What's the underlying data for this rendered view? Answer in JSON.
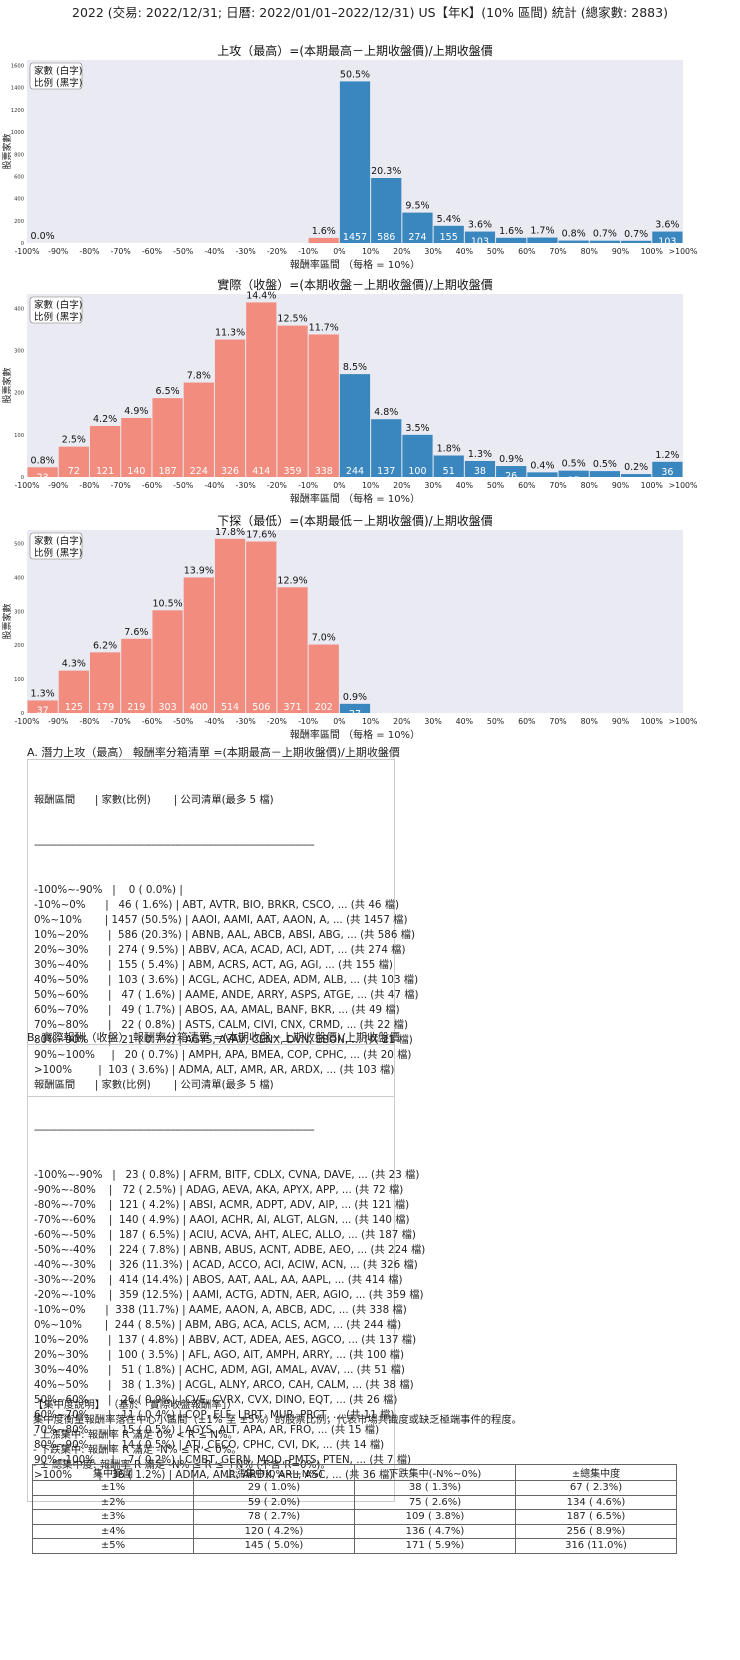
{
  "page_title": "2022 (交易: 2022/12/31; 日曆: 2022/01/01–2022/12/31) US【年K】(10% 區間) 統計 (總家數: 2883)",
  "colors": {
    "up": "#3a87c0",
    "down": "#f28c7f",
    "panel": "#eaeaf2"
  },
  "legend": {
    "line1": "家數 (白字)",
    "line2": "比例 (黑字)"
  },
  "chart_data": [
    {
      "type": "bar",
      "title": "上攻（最高）=(本期最高－上期收盤價)/上期收盤價",
      "xlabel": "報酬率區間 （每格 = 10%）",
      "ylabel": "股票家數",
      "xticks": [
        "-100%",
        "-90%",
        "-80%",
        "-70%",
        "-60%",
        "-50%",
        "-40%",
        "-30%",
        "-20%",
        "-10%",
        "0%",
        "10%",
        "20%",
        "30%",
        "40%",
        "50%",
        "60%",
        "70%",
        "80%",
        "90%",
        "100%",
        ">100%"
      ],
      "yticks": [
        0,
        200,
        400,
        600,
        800,
        1000,
        1200,
        1400,
        1600
      ],
      "ylim": [
        0,
        1650
      ],
      "bars": [
        {
          "bin": "-100%~-90%",
          "count": 0,
          "pct": "0.0%",
          "color": "down"
        },
        {
          "bin": "-10%~0%",
          "count": 46,
          "pct": "1.6%",
          "color": "down"
        },
        {
          "bin": "0%~10%",
          "count": 1457,
          "pct": "50.5%",
          "color": "up"
        },
        {
          "bin": "10%~20%",
          "count": 586,
          "pct": "20.3%",
          "color": "up"
        },
        {
          "bin": "20%~30%",
          "count": 274,
          "pct": "9.5%",
          "color": "up"
        },
        {
          "bin": "30%~40%",
          "count": 155,
          "pct": "5.4%",
          "color": "up"
        },
        {
          "bin": "40%~50%",
          "count": 103,
          "pct": "3.6%",
          "color": "up"
        },
        {
          "bin": "50%~60%",
          "count": 47,
          "pct": "1.6%",
          "color": "up"
        },
        {
          "bin": "60%~70%",
          "count": 49,
          "pct": "1.7%",
          "color": "up"
        },
        {
          "bin": "70%~80%",
          "count": 22,
          "pct": "0.8%",
          "color": "up"
        },
        {
          "bin": "80%~90%",
          "count": 21,
          "pct": "0.7%",
          "color": "up"
        },
        {
          "bin": "90%~100%",
          "count": 20,
          "pct": "0.7%",
          "color": "up"
        },
        {
          "bin": ">100%",
          "count": 103,
          "pct": "3.6%",
          "color": "up"
        }
      ]
    },
    {
      "type": "bar",
      "title": "實際（收盤）=(本期收盤－上期收盤價)/上期收盤價",
      "xlabel": "報酬率區間 （每格 = 10%）",
      "ylabel": "股票家數",
      "xticks": [
        "-100%",
        "-90%",
        "-80%",
        "-70%",
        "-60%",
        "-50%",
        "-40%",
        "-30%",
        "-20%",
        "-10%",
        "0%",
        "10%",
        "20%",
        "30%",
        "40%",
        "50%",
        "60%",
        "70%",
        "80%",
        "90%",
        "100%",
        ">100%"
      ],
      "yticks": [
        0,
        100,
        200,
        300,
        400
      ],
      "ylim": [
        0,
        434
      ],
      "bars": [
        {
          "bin": "-100%~-90%",
          "count": 23,
          "pct": "0.8%",
          "color": "down"
        },
        {
          "bin": "-90%~-80%",
          "count": 72,
          "pct": "2.5%",
          "color": "down"
        },
        {
          "bin": "-80%~-70%",
          "count": 121,
          "pct": "4.2%",
          "color": "down"
        },
        {
          "bin": "-70%~-60%",
          "count": 140,
          "pct": "4.9%",
          "color": "down"
        },
        {
          "bin": "-60%~-50%",
          "count": 187,
          "pct": "6.5%",
          "color": "down"
        },
        {
          "bin": "-50%~-40%",
          "count": 224,
          "pct": "7.8%",
          "color": "down"
        },
        {
          "bin": "-40%~-30%",
          "count": 326,
          "pct": "11.3%",
          "color": "down"
        },
        {
          "bin": "-30%~-20%",
          "count": 414,
          "pct": "14.4%",
          "color": "down"
        },
        {
          "bin": "-20%~-10%",
          "count": 359,
          "pct": "12.5%",
          "color": "down"
        },
        {
          "bin": "-10%~0%",
          "count": 338,
          "pct": "11.7%",
          "color": "down"
        },
        {
          "bin": "0%~10%",
          "count": 244,
          "pct": "8.5%",
          "color": "up"
        },
        {
          "bin": "10%~20%",
          "count": 137,
          "pct": "4.8%",
          "color": "up"
        },
        {
          "bin": "20%~30%",
          "count": 100,
          "pct": "3.5%",
          "color": "up"
        },
        {
          "bin": "30%~40%",
          "count": 51,
          "pct": "1.8%",
          "color": "up"
        },
        {
          "bin": "40%~50%",
          "count": 38,
          "pct": "1.3%",
          "color": "up"
        },
        {
          "bin": "50%~60%",
          "count": 26,
          "pct": "0.9%",
          "color": "up"
        },
        {
          "bin": "60%~70%",
          "count": 11,
          "pct": "0.4%",
          "color": "up"
        },
        {
          "bin": "70%~80%",
          "count": 15,
          "pct": "0.5%",
          "color": "up"
        },
        {
          "bin": "80%~90%",
          "count": 14,
          "pct": "0.5%",
          "color": "up"
        },
        {
          "bin": "90%~100%",
          "count": 7,
          "pct": "0.2%",
          "color": "up"
        },
        {
          "bin": ">100%",
          "count": 36,
          "pct": "1.2%",
          "color": "up"
        }
      ]
    },
    {
      "type": "bar",
      "title": "下探（最低）=(本期最低－上期收盤價)/上期收盤價",
      "xlabel": "報酬率區間 （每格 = 10%）",
      "ylabel": "股票家數",
      "xticks": [
        "-100%",
        "-90%",
        "-80%",
        "-70%",
        "-60%",
        "-50%",
        "-40%",
        "-30%",
        "-20%",
        "-10%",
        "0%",
        "10%",
        "20%",
        "30%",
        "40%",
        "50%",
        "60%",
        "70%",
        "80%",
        "90%",
        "100%",
        ">100%"
      ],
      "yticks": [
        0,
        100,
        200,
        300,
        400,
        500
      ],
      "ylim": [
        0,
        540
      ],
      "bars": [
        {
          "bin": "-100%~-90%",
          "count": 37,
          "pct": "1.3%",
          "color": "down"
        },
        {
          "bin": "-90%~-80%",
          "count": 125,
          "pct": "4.3%",
          "color": "down"
        },
        {
          "bin": "-80%~-70%",
          "count": 179,
          "pct": "6.2%",
          "color": "down"
        },
        {
          "bin": "-70%~-60%",
          "count": 219,
          "pct": "7.6%",
          "color": "down"
        },
        {
          "bin": "-60%~-50%",
          "count": 303,
          "pct": "10.5%",
          "color": "down"
        },
        {
          "bin": "-50%~-40%",
          "count": 400,
          "pct": "13.9%",
          "color": "down"
        },
        {
          "bin": "-40%~-30%",
          "count": 514,
          "pct": "17.8%",
          "color": "down"
        },
        {
          "bin": "-30%~-20%",
          "count": 506,
          "pct": "17.6%",
          "color": "down"
        },
        {
          "bin": "-20%~-10%",
          "count": 371,
          "pct": "12.9%",
          "color": "down"
        },
        {
          "bin": "-10%~0%",
          "count": 202,
          "pct": "7.0%",
          "color": "down"
        },
        {
          "bin": "0%~10%",
          "count": 27,
          "pct": "0.9%",
          "color": "up"
        }
      ]
    }
  ],
  "section_a": {
    "title": "A. 潛力上攻（最高） 報酬率分箱清單 =(本期最高－上期收盤價)/上期收盤價",
    "header": "報酬區間      | 家數(比例)       | 公司清單(最多 5 檔)",
    "separator": "-------------------------------------------------------------------------------------------------------",
    "rows": [
      "-100%~-90%   |    0 ( 0.0%) |",
      "-10%~0%      |   46 ( 1.6%) | ABT, AVTR, BIO, BRKR, CSCO, ... (共 46 檔)",
      "0%~10%       | 1457 (50.5%) | AAOI, AAMI, AAT, AAON, A, ... (共 1457 檔)",
      "10%~20%      |  586 (20.3%) | ABNB, AAL, ABCB, ABSI, ABG, ... (共 586 檔)",
      "20%~30%      |  274 ( 9.5%) | ABBV, ACA, ACAD, ACI, ADT, ... (共 274 檔)",
      "30%~40%      |  155 ( 5.4%) | ABM, ACRS, ACT, AG, AGI, ... (共 155 檔)",
      "40%~50%      |  103 ( 3.6%) | ACGL, ACHC, ADEA, ADM, ALB, ... (共 103 檔)",
      "50%~60%      |   47 ( 1.6%) | AAME, ANDE, ARRY, ASPS, ATGE, ... (共 47 檔)",
      "60%~70%      |   49 ( 1.7%) | ABOS, AA, AMAL, BANF, BKR, ... (共 49 檔)",
      "70%~80%      |   22 ( 0.8%) | ASTS, CALM, CIVI, CNX, CRMD, ... (共 22 檔)",
      "80%~90%      |   21 ( 0.7%) | AGYS, AVAV, CENX, DVN, EBON, ... (共 21 檔)",
      "90%~100%     |   20 ( 0.7%) | AMPH, APA, BMEA, COP, CPHC, ... (共 20 檔)",
      ">100%        |  103 ( 3.6%) | ADMA, ALT, AMR, AR, ARDX, ... (共 103 檔)"
    ]
  },
  "section_b": {
    "title": "B. 實際報酬（收盤） 報酬率分箱清單 =(本期收盤－上期收盤價)/上期收盤價",
    "header": "報酬區間      | 家數(比例)       | 公司清單(最多 5 檔)",
    "separator": "-------------------------------------------------------------------------------------------------------",
    "rows": [
      "-100%~-90%   |   23 ( 0.8%) | AFRM, BITF, CDLX, CVNA, DAVE, ... (共 23 檔)",
      "-90%~-80%    |   72 ( 2.5%) | ADAG, AEVA, AKA, APYX, APP, ... (共 72 檔)",
      "-80%~-70%    |  121 ( 4.2%) | ABSI, ACMR, ADPT, ADV, AIP, ... (共 121 檔)",
      "-70%~-60%    |  140 ( 4.9%) | AAOI, ACHR, AI, ALGT, ALGN, ... (共 140 檔)",
      "-60%~-50%    |  187 ( 6.5%) | ACIU, ACVA, AHT, ALEC, ALLO, ... (共 187 檔)",
      "-50%~-40%    |  224 ( 7.8%) | ABNB, ABUS, ACNT, ADBE, AEO, ... (共 224 檔)",
      "-40%~-30%    |  326 (11.3%) | ACAD, ACCO, ACI, ACIW, ACN, ... (共 326 檔)",
      "-30%~-20%    |  414 (14.4%) | ABOS, AAT, AAL, AA, AAPL, ... (共 414 檔)",
      "-20%~-10%    |  359 (12.5%) | AAMI, ACTG, ADTN, AER, AGIO, ... (共 359 檔)",
      "-10%~0%      |  338 (11.7%) | AAME, AAON, A, ABCB, ADC, ... (共 338 檔)",
      "0%~10%       |  244 ( 8.5%) | ABM, ABG, ACA, ACLS, ACM, ... (共 244 檔)",
      "10%~20%      |  137 ( 4.8%) | ABBV, ACT, ADEA, AES, AGCO, ... (共 137 檔)",
      "20%~30%      |  100 ( 3.5%) | AFL, AGO, AIT, AMPH, ARRY, ... (共 100 檔)",
      "30%~40%      |   51 ( 1.8%) | ACHC, ADM, AGI, AMAL, AVAV, ... (共 51 檔)",
      "40%~50%      |   38 ( 1.3%) | ACGL, ALNY, ARCO, CAH, CALM, ... (共 38 檔)",
      "50%~60%      |   26 ( 0.9%) | CVE, CVRX, CVX, DINO, EQT, ... (共 26 檔)",
      "60%~70%      |   11 ( 0.4%) | COP, ELF, LBRT, MUR, PRCT, ... (共 11 檔)",
      "70%~80%      |   15 ( 0.5%) | AGYS, ALT, APA, AR, FRO, ... (共 15 檔)",
      "80%~90%      |   14 ( 0.5%) | ATI, CECO, CPHC, CVI, DK, ... (共 14 檔)",
      "90%~100%     |    7 ( 0.2%) | CMBT, GERN, MOD, PMTS, PTEN, ... (共 7 檔)",
      ">100%        |   36 ( 1.2%) | ADMA, AMR, ARDX, ARL, ASC, ... (共 36 檔)"
    ]
  },
  "concentration": {
    "heading": "【集中度說明】 （基於「實際收盤報酬率」）",
    "lines": [
      "集中度衡量報酬率落在中心小區間（±1% 至 ±5%）的股票比例，代表市場共識度或缺乏極端事件的程度。",
      " - 上漲集中: 報酬率 R 滿足 0% < R ≤ N%。",
      " - 下跌集中: 報酬率 R 滿足 -N% ≤ R < 0%。",
      " - ± 總集中度: 報酬率 R 滿足 -N% ≤ R ≤ +N% (不含 R=0%)。"
    ],
    "table": {
      "headers": [
        "集中範圍",
        "上漲集中(0%~+N%)",
        "下跌集中(-N%~0%)",
        "±總集中度"
      ],
      "rows": [
        [
          "±1%",
          "29 ( 1.0%)",
          "38 ( 1.3%)",
          "67 ( 2.3%)"
        ],
        [
          "±2%",
          "59 ( 2.0%)",
          "75 ( 2.6%)",
          "134 ( 4.6%)"
        ],
        [
          "±3%",
          "78 ( 2.7%)",
          "109 ( 3.8%)",
          "187 ( 6.5%)"
        ],
        [
          "±4%",
          "120 ( 4.2%)",
          "136 ( 4.7%)",
          "256 ( 8.9%)"
        ],
        [
          "±5%",
          "145 ( 5.0%)",
          "171 ( 5.9%)",
          "316 (11.0%)"
        ]
      ]
    }
  }
}
